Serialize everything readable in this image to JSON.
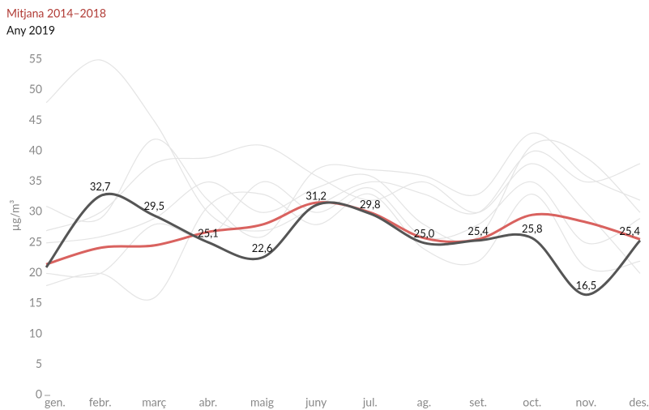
{
  "chart_data": {
    "type": "line",
    "ylabel": "µg/m³",
    "categories": [
      "gen.",
      "febr.",
      "març",
      "abr.",
      "maig",
      "juny",
      "jul.",
      "ag.",
      "set.",
      "oct.",
      "nov.",
      "des."
    ],
    "ylim": [
      0,
      55
    ],
    "yticks": [
      0,
      5,
      10,
      15,
      20,
      25,
      30,
      35,
      40,
      45,
      50,
      55
    ],
    "grid": false,
    "background_color": "#e4e4e4",
    "background_series": [
      [
        48,
        55,
        45,
        30,
        27,
        31,
        35,
        33,
        30,
        40,
        35,
        38
      ],
      [
        31,
        29,
        42,
        32,
        26,
        37,
        37,
        36,
        33,
        43,
        36,
        32
      ],
      [
        27,
        30,
        38,
        39,
        41,
        36,
        32,
        35,
        30,
        38,
        30,
        20
      ],
      [
        25,
        26,
        29,
        35,
        30,
        34,
        36,
        28,
        26,
        41,
        39,
        30
      ],
      [
        18,
        20,
        16,
        31,
        33,
        28,
        33,
        24,
        22,
        33,
        21,
        22
      ],
      [
        20,
        20,
        28,
        26,
        35,
        30,
        34,
        26,
        28,
        35,
        25,
        29
      ]
    ],
    "series": [
      {
        "name": "Mitjana 2014–2018",
        "color": "#d9625f",
        "values": [
          21.5,
          24.2,
          24.6,
          26.8,
          28,
          31.6,
          30,
          25.8,
          25.6,
          29.6,
          28.4,
          25.6
        ]
      },
      {
        "name": "Any 2019",
        "color": "#555555",
        "values": [
          21,
          32.7,
          29.5,
          25.1,
          22.6,
          31.2,
          29.8,
          25.0,
          25.4,
          25.8,
          16.5,
          25.4
        ],
        "value_labels": [
          null,
          "32,7",
          "29,5",
          "25,1",
          "22,6",
          "31,2",
          "29,8",
          "25,0",
          "25,4",
          "25,8",
          "16,5",
          "25,4"
        ]
      }
    ]
  }
}
